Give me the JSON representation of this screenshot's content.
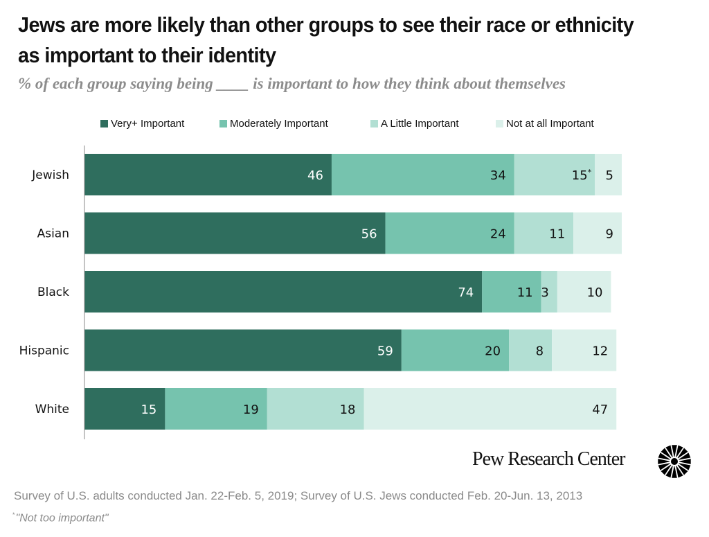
{
  "title": "Jews are more likely than other groups to see their race or ethnicity as important to their identity",
  "subtitle": "% of each group saying being ____ is important to how they think about themselves",
  "chart_data": {
    "type": "bar",
    "orientation": "horizontal",
    "stacked": true,
    "title": "Jews are more likely than other groups to see their race or ethnicity as important to their identity",
    "subtitle": "% of each group saying being ____ is important to how they think about themselves",
    "xlabel": "",
    "ylabel": "",
    "xlim": [
      0,
      100
    ],
    "grid": false,
    "legend_position": "top",
    "categories": [
      "Jewish",
      "Asian",
      "Black",
      "Hispanic",
      "White"
    ],
    "series": [
      {
        "name": "Very+ Important",
        "color": "#2f6e5e",
        "label_color": "#ffffff",
        "values": [
          46,
          56,
          74,
          59,
          15
        ],
        "labels": [
          "46",
          "56",
          "74",
          "59",
          "15"
        ]
      },
      {
        "name": "Moderately Important",
        "color": "#76c3ae",
        "label_color": "#111111",
        "values": [
          34,
          24,
          11,
          20,
          19
        ],
        "labels": [
          "34",
          "24",
          "11",
          "20",
          "19"
        ]
      },
      {
        "name": "A Little Important",
        "color": "#b2dfd3",
        "label_color": "#111111",
        "values": [
          15,
          11,
          3,
          8,
          18
        ],
        "labels": [
          "15*",
          "11",
          "3",
          "8",
          "18"
        ]
      },
      {
        "name": "Not at all Important",
        "color": "#dbf0ea",
        "label_color": "#111111",
        "values": [
          5,
          9,
          10,
          12,
          47
        ],
        "labels": [
          "5",
          "9",
          "10",
          "12",
          "47"
        ]
      }
    ],
    "annotations": [
      "* \"Not too important\""
    ]
  },
  "brand": {
    "name": "Pew Research Center",
    "icon": "pew-sunburst-logo-icon"
  },
  "source": "Survey of U.S. adults conducted Jan. 22-Feb. 5, 2019; Survey of U.S. Jews conducted Feb. 20-Jun. 13, 2013",
  "note": {
    "mark": "*",
    "text": "\"Not too important\""
  }
}
